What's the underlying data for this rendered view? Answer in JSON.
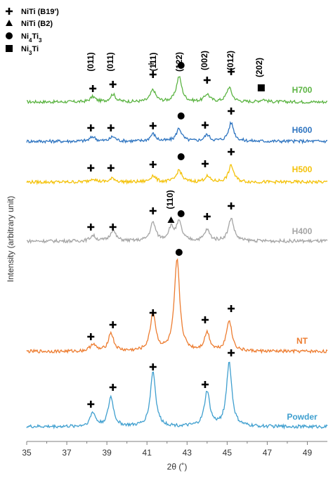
{
  "chart_data": {
    "type": "line",
    "title": "",
    "xlabel": "2θ (˚)",
    "ylabel": "Intensity (arbitrary unit)",
    "xlim": [
      35,
      50
    ],
    "x_ticks": [
      35,
      37,
      39,
      41,
      43,
      45,
      47,
      49
    ],
    "legend": [
      {
        "marker": "plus",
        "label": "NiTi (B19')"
      },
      {
        "marker": "triangle",
        "label": "NiTi (B2)"
      },
      {
        "marker": "circle",
        "label": "Ni",
        "sub1": "4",
        "mid": "Ti",
        "sub2": "3"
      },
      {
        "marker": "square",
        "label": "Ni",
        "sub1": "3",
        "mid": "Ti",
        "sub2": ""
      }
    ],
    "plane_labels": [
      {
        "x": 38.3,
        "text": "(011)",
        "overline": false
      },
      {
        "x": 39.3,
        "text": "(011)",
        "overline": false
      },
      {
        "x": 41.3,
        "text": "(111)",
        "overline": true
      },
      {
        "x": 42.7,
        "text": "(122)",
        "overline": false
      },
      {
        "x": 44.0,
        "text": "(002)",
        "overline": false
      },
      {
        "x": 45.2,
        "text": "(012)",
        "overline": false
      },
      {
        "x": 46.8,
        "text": "(202)",
        "overline": false
      },
      {
        "x": 42.2,
        "text": "(110)",
        "overline": false
      }
    ],
    "series": [
      {
        "name": "H700",
        "color": "#5cb443",
        "peaks": [
          [
            38.3,
            0.06
          ],
          [
            39.3,
            0.09
          ],
          [
            41.3,
            0.14
          ],
          [
            42.6,
            0.3
          ],
          [
            44.0,
            0.09
          ],
          [
            45.1,
            0.17
          ],
          [
            46.8,
            0.03
          ]
        ],
        "markers": [
          [
            "plus",
            38.3
          ],
          [
            "plus",
            39.3
          ],
          [
            "plus",
            41.3
          ],
          [
            "circle",
            42.7
          ],
          [
            "plus",
            44.0
          ],
          [
            "plus",
            45.2
          ],
          [
            "square",
            46.7
          ]
        ]
      },
      {
        "name": "H600",
        "color": "#2e74c0",
        "peaks": [
          [
            38.3,
            0.05
          ],
          [
            39.3,
            0.05
          ],
          [
            41.3,
            0.08
          ],
          [
            42.6,
            0.14
          ],
          [
            44.0,
            0.07
          ],
          [
            45.2,
            0.2
          ]
        ],
        "markers": [
          [
            "plus",
            38.2
          ],
          [
            "plus",
            39.2
          ],
          [
            "plus",
            41.3
          ],
          [
            "circle",
            42.7
          ],
          [
            "plus",
            43.9
          ],
          [
            "plus",
            45.2
          ]
        ]
      },
      {
        "name": "H500",
        "color": "#f4c20a",
        "peaks": [
          [
            38.3,
            0.04
          ],
          [
            39.3,
            0.04
          ],
          [
            41.3,
            0.07
          ],
          [
            42.6,
            0.13
          ],
          [
            44.0,
            0.06
          ],
          [
            45.2,
            0.18
          ]
        ],
        "markers": [
          [
            "plus",
            38.2
          ],
          [
            "plus",
            39.2
          ],
          [
            "plus",
            41.3
          ],
          [
            "circle",
            42.7
          ],
          [
            "plus",
            43.9
          ],
          [
            "plus",
            45.2
          ]
        ]
      },
      {
        "name": "H400",
        "color": "#a5a5a5",
        "peaks": [
          [
            38.3,
            0.06
          ],
          [
            39.3,
            0.12
          ],
          [
            41.3,
            0.2
          ],
          [
            42.2,
            0.14
          ],
          [
            42.6,
            0.2
          ],
          [
            44.0,
            0.12
          ],
          [
            45.2,
            0.25
          ]
        ],
        "markers": [
          [
            "plus",
            38.2
          ],
          [
            "plus",
            39.3
          ],
          [
            "plus",
            41.3
          ],
          [
            "triangle",
            42.2
          ],
          [
            "circle",
            42.7
          ],
          [
            "plus",
            44.0
          ],
          [
            "plus",
            45.2
          ]
        ]
      },
      {
        "name": "NT",
        "color": "#ed7d31",
        "peaks": [
          [
            38.3,
            0.08
          ],
          [
            39.2,
            0.2
          ],
          [
            41.3,
            0.42
          ],
          [
            42.5,
            1.0
          ],
          [
            44.0,
            0.2
          ],
          [
            45.1,
            0.34
          ]
        ],
        "markers": [
          [
            "plus",
            38.2
          ],
          [
            "plus",
            39.3
          ],
          [
            "plus",
            41.3
          ],
          [
            "circle",
            42.6
          ],
          [
            "plus",
            43.9
          ],
          [
            "plus",
            45.2
          ]
        ]
      },
      {
        "name": "Powder",
        "color": "#3f9fcf",
        "peaks": [
          [
            38.3,
            0.15
          ],
          [
            39.2,
            0.32
          ],
          [
            41.3,
            0.6
          ],
          [
            44.0,
            0.38
          ],
          [
            45.1,
            0.7
          ]
        ],
        "markers": [
          [
            "plus",
            38.2
          ],
          [
            "plus",
            39.3
          ],
          [
            "plus",
            41.3
          ],
          [
            "plus",
            43.9
          ],
          [
            "plus",
            45.2
          ]
        ]
      }
    ]
  }
}
